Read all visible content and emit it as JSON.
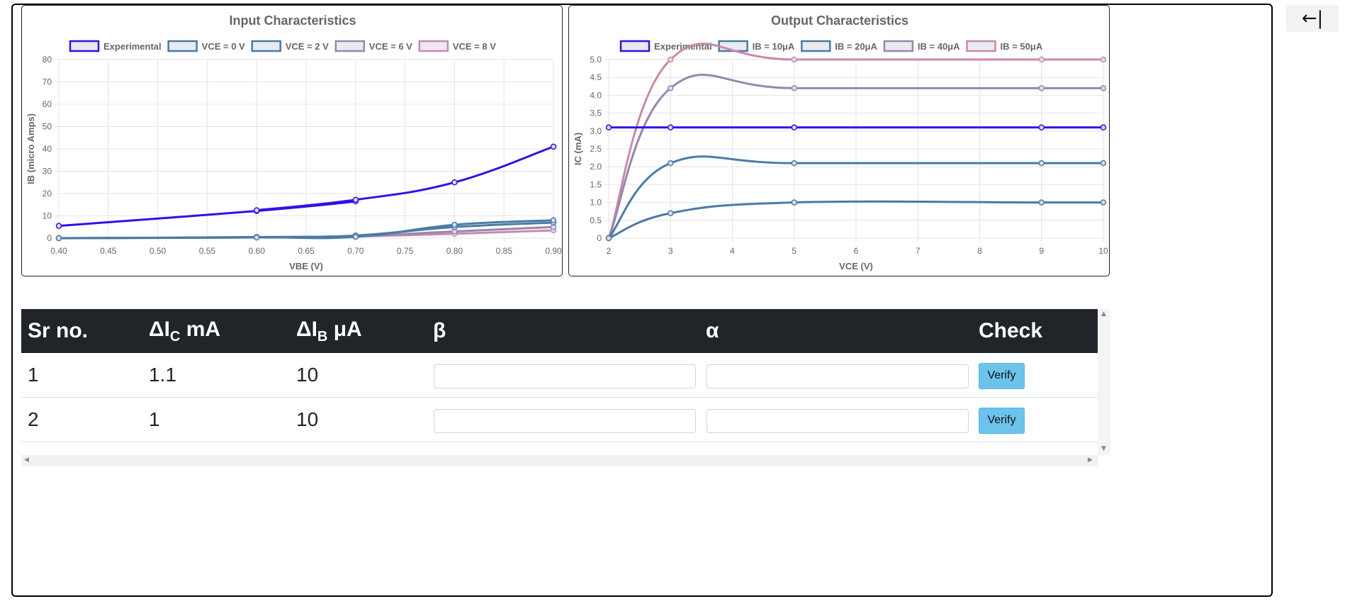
{
  "collapse_button": {
    "label": "←|"
  },
  "chart_data": [
    {
      "type": "line",
      "title": "Input Characteristics",
      "xlabel": "VBE (V)",
      "ylabel": "IB (micro Amps)",
      "xlim": [
        0.4,
        0.9
      ],
      "ylim": [
        0,
        80
      ],
      "x_ticks": [
        "0.40",
        "0.45",
        "0.50",
        "0.55",
        "0.60",
        "0.65",
        "0.70",
        "0.75",
        "0.80",
        "0.85",
        "0.90"
      ],
      "y_ticks": [
        "0",
        "10",
        "20",
        "30",
        "40",
        "50",
        "60",
        "70",
        "80"
      ],
      "grid": true,
      "legend_position": "top",
      "series": [
        {
          "name": "Experimental",
          "color": "#2d13e6",
          "points": [
            [
              0.4,
              5.5
            ],
            [
              0.6,
              12.2
            ],
            [
              0.7,
              16.5
            ],
            [
              0.6,
              12.5
            ],
            [
              0.7,
              17.2
            ],
            [
              0.8,
              25
            ],
            [
              0.9,
              41
            ]
          ]
        },
        {
          "name": "VCE = 0 V",
          "color": "#4a7ba6",
          "points": [
            [
              0.4,
              0
            ],
            [
              0.6,
              0.3
            ],
            [
              0.7,
              0.6
            ],
            [
              0.8,
              6
            ],
            [
              0.9,
              8
            ]
          ]
        },
        {
          "name": "VCE = 2 V",
          "color": "#4a7ba6",
          "points": [
            [
              0.4,
              0
            ],
            [
              0.6,
              0.5
            ],
            [
              0.7,
              1.2
            ],
            [
              0.8,
              5
            ],
            [
              0.9,
              7
            ]
          ]
        },
        {
          "name": "VCE = 6 V",
          "color": "#9a85b0",
          "points": [
            [
              0.4,
              0
            ],
            [
              0.6,
              0.4
            ],
            [
              0.7,
              1
            ],
            [
              0.8,
              3
            ],
            [
              0.9,
              5
            ]
          ]
        },
        {
          "name": "VCE = 8 V",
          "color": "#c98aab",
          "points": [
            [
              0.4,
              0
            ],
            [
              0.6,
              0.3
            ],
            [
              0.7,
              0.8
            ],
            [
              0.8,
              2
            ],
            [
              0.9,
              3.5
            ]
          ]
        }
      ]
    },
    {
      "type": "line",
      "title": "Output Characteristics",
      "xlabel": "VCE (V)",
      "ylabel": "IC (mA)",
      "xlim": [
        2,
        10
      ],
      "ylim": [
        0,
        5
      ],
      "x_ticks": [
        "2",
        "3",
        "4",
        "5",
        "6",
        "7",
        "8",
        "9",
        "10"
      ],
      "y_ticks": [
        "0",
        "0.5",
        "1.0",
        "1.5",
        "2.0",
        "2.5",
        "3.0",
        "3.5",
        "4.0",
        "4.5",
        "5.0"
      ],
      "grid": true,
      "legend_position": "top",
      "series": [
        {
          "name": "Experimental",
          "color": "#2d13e6",
          "points": [
            [
              2,
              3.1
            ],
            [
              3,
              3.1
            ],
            [
              5,
              3.1
            ],
            [
              9,
              3.1
            ],
            [
              10,
              3.1
            ]
          ]
        },
        {
          "name": "IB = 10μA",
          "color": "#4a7ba6",
          "points": [
            [
              2,
              0
            ],
            [
              3,
              0.7
            ],
            [
              5,
              1.0
            ],
            [
              9,
              1.0
            ],
            [
              10,
              1.0
            ]
          ]
        },
        {
          "name": "IB = 20μA",
          "color": "#4a7ba6",
          "points": [
            [
              2,
              0
            ],
            [
              3,
              2.1
            ],
            [
              5,
              2.1
            ],
            [
              9,
              2.1
            ],
            [
              10,
              2.1
            ]
          ]
        },
        {
          "name": "IB = 40μA",
          "color": "#9a85b0",
          "points": [
            [
              2,
              0
            ],
            [
              3,
              4.2
            ],
            [
              5,
              4.2
            ],
            [
              9,
              4.2
            ],
            [
              10,
              4.2
            ]
          ]
        },
        {
          "name": "IB = 50μA",
          "color": "#c98aab",
          "points": [
            [
              2,
              0
            ],
            [
              3,
              5
            ],
            [
              5,
              5
            ],
            [
              9,
              5
            ],
            [
              10,
              5
            ]
          ]
        }
      ]
    }
  ],
  "table": {
    "headers": {
      "sr_no": "Sr no.",
      "delta_ic_main": "ΔI",
      "delta_ic_sub": "C",
      "delta_ic_unit": " mA",
      "delta_ib_main": "ΔI",
      "delta_ib_sub": "B",
      "delta_ib_unit": " μA",
      "beta": "β",
      "alpha": "α",
      "check": "Check"
    },
    "rows": [
      {
        "sr": "1",
        "delta_ic": "1.1",
        "delta_ib": "10",
        "beta_value": "",
        "alpha_value": "",
        "verify_label": "Verify"
      },
      {
        "sr": "2",
        "delta_ic": "1",
        "delta_ib": "10",
        "beta_value": "",
        "alpha_value": "",
        "verify_label": "Verify"
      }
    ]
  }
}
